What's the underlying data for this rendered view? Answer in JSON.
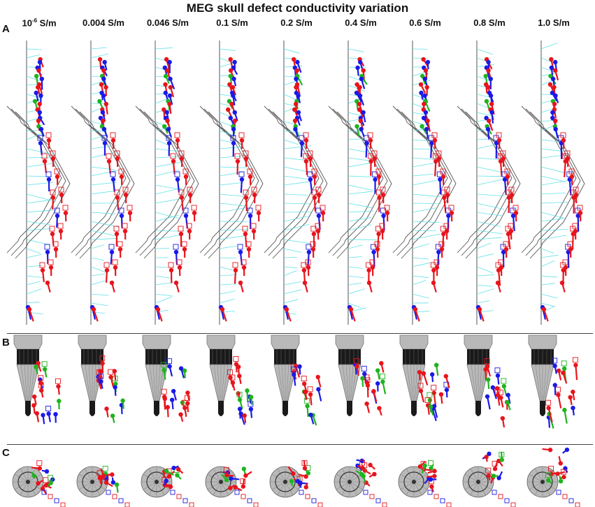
{
  "title": "MEG skull defect conductivity variation",
  "panels": {
    "a": "A",
    "b": "B",
    "c": "C"
  },
  "conductivities": [
    {
      "base": "10",
      "exp": "-6",
      "unit": " S/m"
    },
    {
      "base": "0.004",
      "exp": "",
      "unit": " S/m"
    },
    {
      "base": "0.046",
      "exp": "",
      "unit": " S/m"
    },
    {
      "base": "0.1",
      "exp": "",
      "unit": " S/m"
    },
    {
      "base": "0.2",
      "exp": "",
      "unit": " S/m"
    },
    {
      "base": "0.4",
      "exp": "",
      "unit": " S/m"
    },
    {
      "base": "0.6",
      "exp": "",
      "unit": " S/m"
    },
    {
      "base": "0.8",
      "exp": "",
      "unit": " S/m"
    },
    {
      "base": "1.0",
      "exp": "",
      "unit": " S/m"
    }
  ],
  "colors": {
    "red": "#e8141c",
    "blue": "#1a1ae6",
    "green": "#1eb41e",
    "cyan": "#5fe0e6",
    "outline": "#555555",
    "electrode_gray": "#b9b9b9",
    "electrode_black": "#1a1a1a"
  },
  "legend_markers": [
    "red-dipole",
    "blue-dipole",
    "green-dipole",
    "square-marker-source"
  ]
}
